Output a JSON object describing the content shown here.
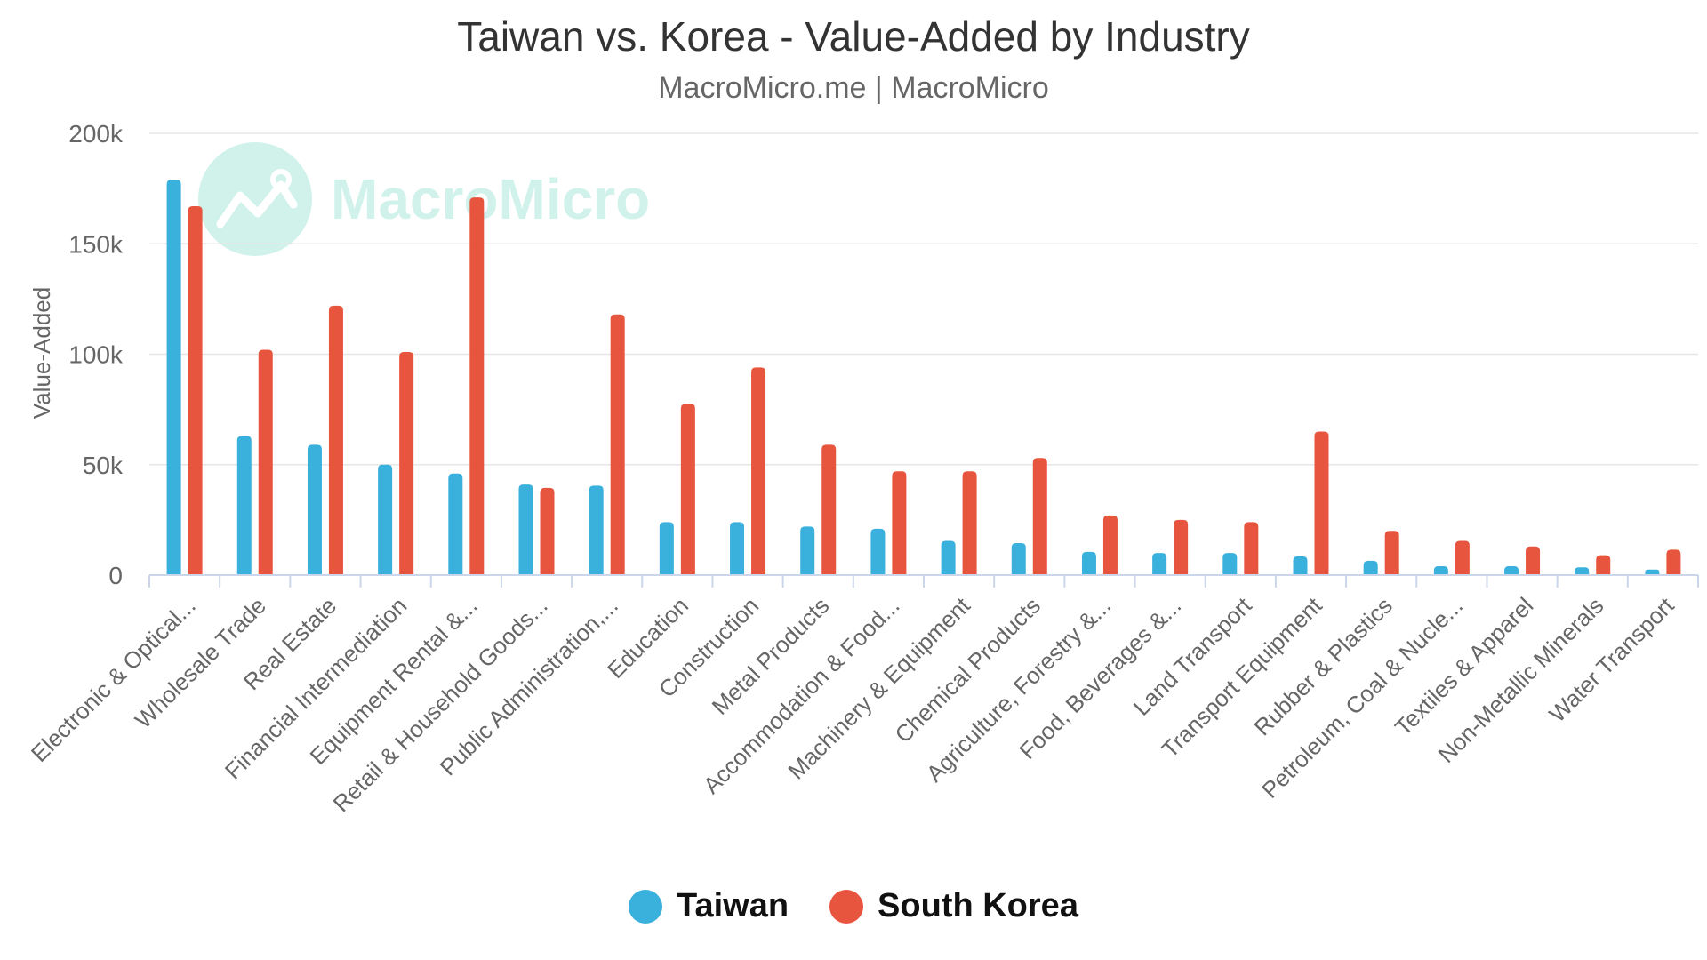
{
  "chart_data": {
    "type": "bar",
    "title": "Taiwan vs. Korea - Value-Added by Industry",
    "subtitle": "MacroMicro.me | MacroMicro",
    "watermark": "MacroMicro",
    "xlabel": "",
    "ylabel": "Value-Added",
    "ylim": [
      0,
      200000
    ],
    "yticks": [
      0,
      50000,
      100000,
      150000,
      200000
    ],
    "ytick_labels": [
      "0",
      "50k",
      "100k",
      "150k",
      "200k"
    ],
    "grid": true,
    "legend_position": "bottom-center",
    "categories": [
      "Electronic & Optical...",
      "Wholesale Trade",
      "Real Estate",
      "Financial Intermediation",
      "Equipment Rental &...",
      "Retail & Household Goods...",
      "Public Administration,...",
      "Education",
      "Construction",
      "Metal Products",
      "Accommodation & Food...",
      "Machinery & Equipment",
      "Chemical Products",
      "Agriculture, Forestry &...",
      "Food, Beverages &...",
      "Land Transport",
      "Transport Equipment",
      "Rubber & Plastics",
      "Petroleum, Coal & Nucle...",
      "Textiles & Apparel",
      "Non-Metallic Minerals",
      "Water Transport"
    ],
    "series": [
      {
        "name": "Taiwan",
        "color": "#3ab0dc",
        "values": [
          179000,
          63000,
          59000,
          50000,
          46000,
          41000,
          40500,
          24000,
          24000,
          22000,
          21000,
          15500,
          14500,
          10500,
          10000,
          10000,
          8500,
          6500,
          4000,
          4000,
          3500,
          2500
        ]
      },
      {
        "name": "South Korea",
        "color": "#e8553e",
        "values": [
          167000,
          102000,
          122000,
          101000,
          171000,
          39500,
          118000,
          77500,
          94000,
          59000,
          47000,
          47000,
          53000,
          27000,
          25000,
          24000,
          65000,
          20000,
          15500,
          13000,
          9000,
          11500
        ]
      }
    ]
  }
}
